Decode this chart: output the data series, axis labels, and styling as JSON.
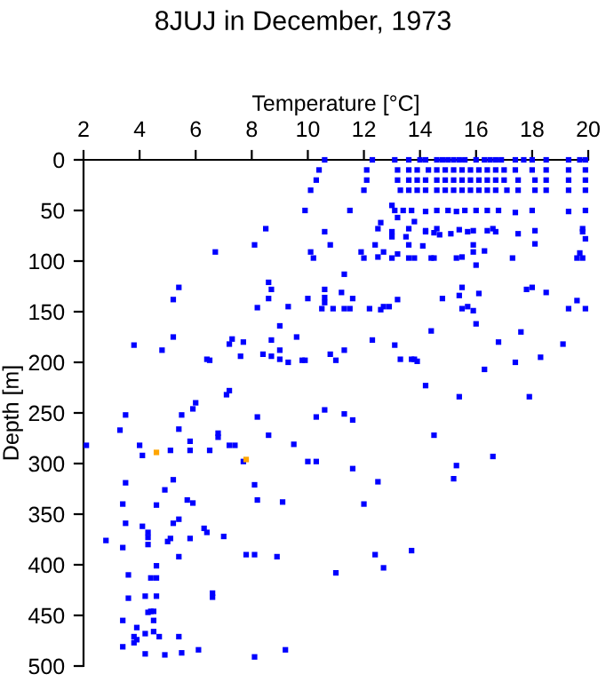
{
  "chart_data": {
    "type": "scatter",
    "title": "8JUJ in December, 1973",
    "xlabel": "Temperature [°C]",
    "ylabel": "Depth [m]",
    "xlim": [
      2,
      20
    ],
    "xticks": [
      2,
      4,
      6,
      8,
      10,
      12,
      14,
      16,
      18,
      20
    ],
    "ylim": [
      500,
      0
    ],
    "yticks": [
      0,
      50,
      100,
      150,
      200,
      250,
      300,
      350,
      400,
      450,
      500
    ],
    "grid": false,
    "marker": "square",
    "series": [
      {
        "color": "#0000ff",
        "x": [
          10.6,
          12.3,
          13.1,
          13.6,
          14.0,
          14.2,
          14.6,
          14.8,
          15.0,
          15.2,
          15.4,
          15.6,
          16.0,
          16.3,
          16.5,
          16.7,
          16.9,
          17.4,
          17.7,
          18.0,
          18.5,
          19.3,
          19.7,
          19.9,
          10.4,
          12.1,
          13.2,
          13.6,
          13.9,
          14.3,
          14.6,
          14.9,
          15.2,
          15.5,
          15.8,
          16.1,
          16.4,
          16.7,
          17.0,
          17.4,
          18.0,
          18.5,
          19.3,
          19.9,
          10.3,
          12.1,
          13.2,
          13.6,
          13.9,
          14.2,
          14.6,
          14.9,
          15.2,
          15.5,
          15.8,
          16.1,
          16.4,
          16.7,
          17.0,
          17.5,
          18.1,
          18.5,
          19.3,
          19.9,
          10.1,
          12.0,
          13.3,
          13.6,
          13.9,
          14.2,
          14.6,
          14.9,
          15.2,
          15.5,
          15.8,
          16.1,
          16.4,
          16.7,
          17.1,
          17.5,
          18.1,
          18.5,
          19.3,
          19.9,
          13.0,
          9.9,
          11.5,
          13.1,
          13.4,
          13.7,
          14.2,
          14.6,
          15.0,
          15.3,
          15.6,
          16.0,
          16.4,
          16.8,
          17.4,
          18.0,
          19.3,
          19.9,
          13.2,
          13.8,
          12.6,
          8.5,
          12.5,
          13.6,
          14.2,
          14.6,
          15.4,
          15.9,
          16.4,
          16.6,
          18.1,
          19.8,
          10.6,
          13.0,
          14.2,
          14.5,
          15.1,
          15.7,
          16.7,
          17.5,
          19.8,
          13.0,
          13.5,
          14.7,
          19.9,
          8.1,
          10.8,
          12.4,
          13.6,
          14.1,
          15.9,
          18.1,
          6.7,
          10.1,
          11.9,
          12.7,
          13.2,
          15.9,
          16.3,
          19.7,
          10.2,
          12.0,
          12.5,
          13.0,
          13.6,
          13.8,
          14.4,
          14.5,
          15.3,
          15.5,
          17.3,
          19.6,
          19.8,
          16.0,
          11.3,
          8.6,
          8.7,
          5.4,
          5.2,
          10.6,
          10.6,
          10.6,
          10.5,
          10.9,
          11.2,
          11.3,
          11.5,
          11.6,
          12.2,
          12.6,
          12.7,
          12.9,
          13.2,
          9.3,
          10.0,
          8.2,
          8.6,
          15.5,
          16.1,
          15.4,
          15.7,
          15.5,
          15.9,
          14.8,
          17.8,
          18.0,
          18.5,
          19.3,
          19.6,
          19.9,
          9.0,
          16.0,
          14.4,
          17.6,
          9.6,
          12.3,
          8.7,
          16.8,
          19.1,
          13.1,
          3.8,
          7.2,
          7.3,
          7.7,
          5.2,
          4.8,
          9.0,
          11.3,
          8.4,
          10.8,
          7.6,
          8.7,
          9.0,
          9.3,
          9.8,
          9.9,
          11.0,
          6.4,
          6.5,
          13.3,
          13.7,
          13.8,
          13.9,
          17.4,
          18.3,
          16.3,
          14.2,
          15.4,
          17.9,
          7.2,
          7.1,
          6.0,
          5.9,
          5.5,
          3.5,
          8.2,
          10.3,
          10.6,
          11.3,
          11.6,
          3.3,
          5.4,
          6.8,
          6.8,
          8.6,
          14.5,
          5.8,
          9.5,
          2.1,
          4.0,
          5.1,
          5.8,
          6.5,
          7.2,
          7.4,
          4.1,
          7.7,
          10.0,
          10.3,
          15.3,
          16.6,
          3.5,
          3.4,
          3.5,
          2.8,
          3.4,
          3.6,
          3.6,
          3.4,
          3.4,
          3.8,
          3.9,
          3.9,
          3.8,
          4.1,
          4.3,
          4.3,
          4.3,
          4.6,
          4.9,
          5.2,
          4.6,
          4.4,
          4.6,
          4.6,
          4.2,
          4.3,
          4.4,
          4.5,
          4.5,
          4.2,
          4.5,
          4.7,
          4.2,
          4.9,
          5.0,
          5.1,
          5.2,
          5.4,
          5.4,
          5.4,
          5.5,
          5.7,
          5.9,
          5.8,
          6.3,
          6.4,
          6.1,
          6.6,
          6.6,
          7.0,
          7.8,
          8.1,
          8.1,
          8.2,
          8.9,
          9.1,
          8.1,
          9.2,
          11.0,
          11.6,
          12.0,
          12.5,
          12.4,
          12.7,
          13.7,
          15.2
        ],
        "values": [
          0,
          0,
          0,
          0,
          0,
          0,
          0,
          0,
          0,
          0,
          0,
          0,
          0,
          0,
          0,
          0,
          0,
          0,
          0,
          0,
          0,
          0,
          0,
          0,
          10,
          10,
          10,
          10,
          10,
          10,
          10,
          10,
          10,
          10,
          10,
          10,
          10,
          10,
          10,
          10,
          10,
          10,
          10,
          10,
          20,
          20,
          20,
          20,
          20,
          20,
          20,
          20,
          20,
          20,
          20,
          20,
          20,
          20,
          20,
          20,
          20,
          20,
          20,
          20,
          30,
          30,
          30,
          30,
          30,
          30,
          30,
          30,
          30,
          30,
          30,
          30,
          30,
          30,
          30,
          30,
          30,
          30,
          30,
          30,
          45,
          50,
          50,
          50,
          50,
          50,
          51,
          50,
          50,
          51,
          50,
          50,
          50,
          50,
          52,
          50,
          51,
          50,
          57,
          61,
          62,
          68,
          68,
          68,
          70,
          68,
          69,
          70,
          70,
          68,
          70,
          68,
          71,
          71,
          71,
          72,
          73,
          71,
          71,
          73,
          71,
          76,
          76,
          74,
          78,
          84,
          84,
          84,
          84,
          85,
          84,
          83,
          91,
          91,
          91,
          91,
          93,
          91,
          90,
          92,
          97,
          97,
          96,
          97,
          97,
          97,
          97,
          97,
          97,
          96,
          97,
          97,
          97,
          104,
          113,
          121,
          128,
          126,
          138,
          128,
          136,
          141,
          147,
          147,
          131,
          147,
          147,
          137,
          147,
          148,
          145,
          145,
          138,
          145,
          137,
          146,
          137,
          126,
          132,
          134,
          145,
          147,
          149,
          137,
          128,
          126,
          131,
          147,
          139,
          147,
          164,
          162,
          169,
          170,
          175,
          178,
          178,
          180,
          182,
          183,
          183,
          182,
          177,
          180,
          175,
          188,
          188,
          188,
          192,
          192,
          194,
          194,
          197,
          200,
          198,
          198,
          198,
          197,
          198,
          197,
          197,
          197,
          199,
          200,
          195,
          207,
          223,
          234,
          234,
          228,
          232,
          240,
          246,
          252,
          252,
          254,
          254,
          247,
          251,
          257,
          267,
          266,
          270,
          274,
          272,
          272,
          278,
          281,
          282,
          282,
          287,
          287,
          287,
          282,
          282,
          292,
          298,
          298,
          298,
          302,
          293,
          319,
          340,
          359,
          376,
          383,
          410,
          433,
          455,
          481,
          471,
          462,
          474,
          477,
          362,
          373,
          380,
          368,
          341,
          326,
          316,
          401,
          413,
          413,
          431,
          431,
          447,
          446,
          446,
          455,
          468,
          466,
          471,
          488,
          489,
          377,
          374,
          359,
          355,
          392,
          471,
          487,
          336,
          339,
          374,
          364,
          368,
          484,
          428,
          432,
          372,
          390,
          390,
          321,
          336,
          392,
          338,
          491,
          484,
          408,
          305,
          340,
          318,
          390,
          403,
          386,
          315
        ]
      },
      {
        "color": "#ffa500",
        "x": [
          4.6,
          7.8
        ],
        "values": [
          289,
          296
        ]
      }
    ]
  }
}
